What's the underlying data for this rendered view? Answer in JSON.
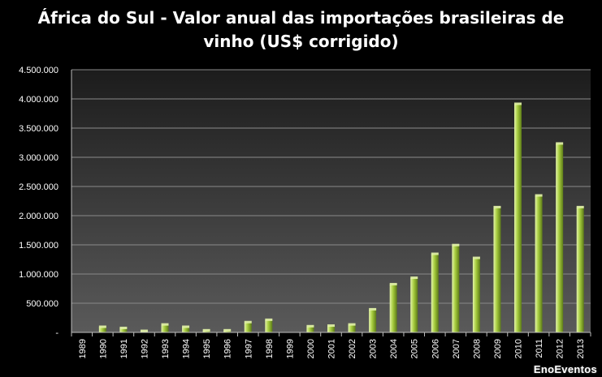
{
  "chart_data": {
    "type": "bar",
    "title_line1": "África do Sul - Valor anual das importações  brasileiras de",
    "title_line2": "vinho (US$ corrigido)",
    "categories": [
      "1989",
      "1990",
      "1991",
      "1992",
      "1993",
      "1994",
      "1995",
      "1996",
      "1997",
      "1998",
      "1999",
      "2000",
      "2001",
      "2002",
      "2003",
      "2004",
      "2005",
      "2006",
      "2007",
      "2008",
      "2009",
      "2010",
      "2011",
      "2012",
      "2013"
    ],
    "values": [
      0,
      90000,
      70000,
      20000,
      130000,
      90000,
      30000,
      30000,
      170000,
      210000,
      0,
      100000,
      110000,
      130000,
      390000,
      820000,
      930000,
      1340000,
      1490000,
      1270000,
      2140000,
      3910000,
      2340000,
      3230000,
      2140000
    ],
    "ylim": [
      0,
      4500000
    ],
    "yticks": [
      "-",
      "500.000",
      "1.000.000",
      "1.500.000",
      "2.000.000",
      "2.500.000",
      "3.000.000",
      "3.500.000",
      "4.000.000",
      "4.500.000"
    ],
    "grid": true,
    "xlabel": "",
    "ylabel": "",
    "colors": {
      "plot_bg_top": "#1c1c1c",
      "plot_bg_bottom": "#5a5a5a",
      "bar_light": "#e4f5a8",
      "bar_mid": "#a6cc3e",
      "bar_dark": "#5c7a18",
      "gridline": "#8a8a8a"
    }
  },
  "watermark": "EnoEventos"
}
